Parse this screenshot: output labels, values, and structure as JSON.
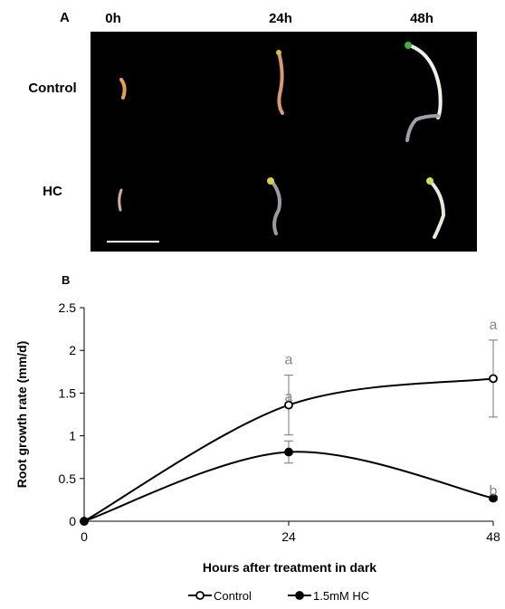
{
  "panel_a": {
    "label": "A",
    "columns": [
      "0h",
      "24h",
      "48h"
    ],
    "rows": [
      "Control",
      "HC"
    ]
  },
  "chart_data": {
    "type": "line",
    "panel_label": "B",
    "x": [
      0,
      24,
      48
    ],
    "xlim": [
      0,
      48
    ],
    "xticks": [
      0,
      24,
      48
    ],
    "ylim": [
      0,
      2.5
    ],
    "yticks": [
      0,
      0.5,
      1,
      1.5,
      2,
      2.5
    ],
    "x_label": "Hours after treatment in dark",
    "y_label": "Root growth rate (mm/d)",
    "series": [
      {
        "name": "Control",
        "color": "#000000",
        "marker": "open",
        "values": [
          0,
          1.36,
          1.67
        ],
        "errors": [
          0,
          0.35,
          0.45
        ],
        "letters": [
          null,
          "a",
          "a"
        ]
      },
      {
        "name": "1.5mM HC",
        "color": "#000000",
        "marker": "filled",
        "values": [
          0,
          0.81,
          0.27
        ],
        "errors": [
          0,
          0.13,
          0.02
        ],
        "letters": [
          null,
          "a",
          "b"
        ]
      }
    ]
  }
}
